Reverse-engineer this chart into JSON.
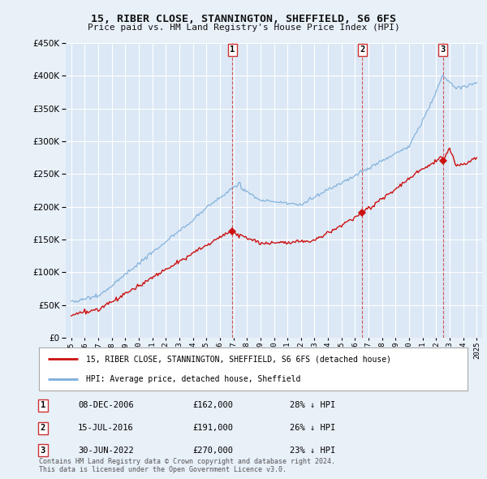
{
  "title": "15, RIBER CLOSE, STANNINGTON, SHEFFIELD, S6 6FS",
  "subtitle": "Price paid vs. HM Land Registry's House Price Index (HPI)",
  "ylim": [
    0,
    450000
  ],
  "yticks": [
    0,
    50000,
    100000,
    150000,
    200000,
    250000,
    300000,
    350000,
    400000,
    450000
  ],
  "background_color": "#e8f0f8",
  "plot_bg_color": "#dce8f5",
  "grid_color": "#ffffff",
  "hpi_color": "#7aaddb",
  "price_color": "#cc1111",
  "vline_color": "#cc3333",
  "transactions": [
    {
      "label": "1",
      "date": "08-DEC-2006",
      "price": 162000,
      "pct": "28%",
      "x": 2006.93
    },
    {
      "label": "2",
      "date": "15-JUL-2016",
      "price": 191000,
      "pct": "26%",
      "x": 2016.54
    },
    {
      "label": "3",
      "date": "30-JUN-2022",
      "price": 270000,
      "pct": "23%",
      "x": 2022.49
    }
  ],
  "legend_line1": "15, RIBER CLOSE, STANNINGTON, SHEFFIELD, S6 6FS (detached house)",
  "legend_line2": "HPI: Average price, detached house, Sheffield",
  "footer": "Contains HM Land Registry data © Crown copyright and database right 2024.\nThis data is licensed under the Open Government Licence v3.0.",
  "xstart": 1995,
  "xend": 2025
}
